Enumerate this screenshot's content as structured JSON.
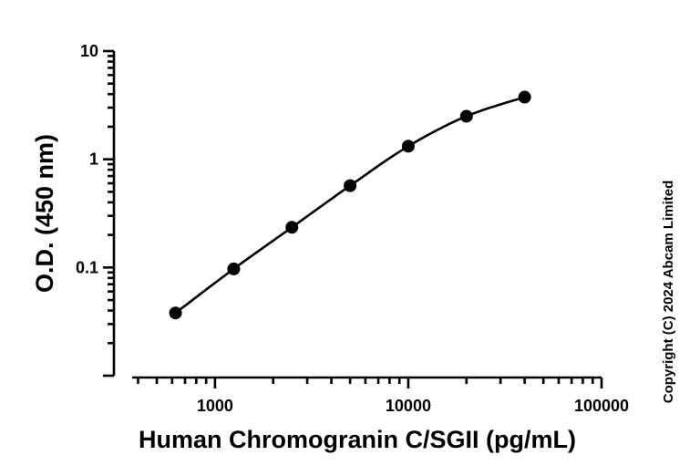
{
  "chart_data": {
    "type": "scatter",
    "xlabel": "Human Chromogranin C/SGII (pg/mL)",
    "ylabel": "O.D. (450 nm)",
    "x_scale": "log",
    "y_scale": "log",
    "xlim": [
      300,
      100000
    ],
    "ylim": [
      0.01,
      10
    ],
    "x_major_ticks": [
      1000,
      10000,
      100000
    ],
    "x_tick_labels": [
      "1000",
      "10000",
      "100000"
    ],
    "y_major_ticks": [
      0.1,
      1,
      10
    ],
    "y_tick_labels": [
      "0.1",
      "1",
      "10"
    ],
    "grid": false,
    "fit_curve": true,
    "series": [
      {
        "x": [
          625,
          1250,
          2500,
          5000,
          10000,
          20000,
          40000
        ],
        "y": [
          0.038,
          0.097,
          0.235,
          0.57,
          1.32,
          2.5,
          3.75
        ]
      }
    ],
    "color": "#000000"
  },
  "copyright": "Copyright (C) 2024 Abcam Limited"
}
